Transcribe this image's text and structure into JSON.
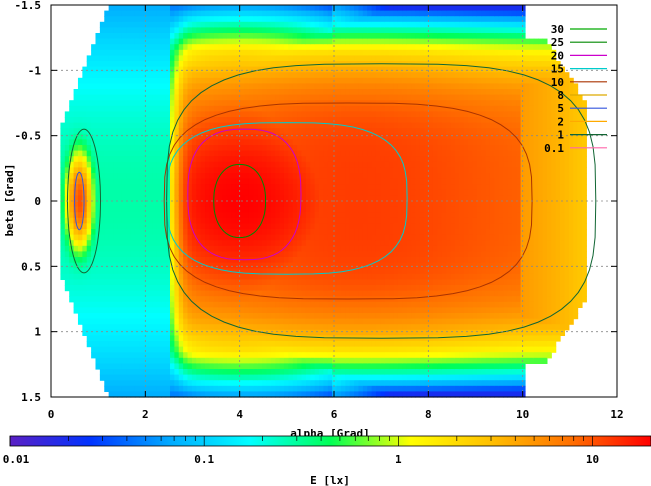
{
  "chart_data": {
    "type": "heatmap",
    "title": "",
    "xlabel": "alpha [Grad]",
    "ylabel": "beta [Grad]",
    "xlim": [
      0,
      12
    ],
    "ylim": [
      1.5,
      -1.5
    ],
    "x_ticks": [
      "0",
      "2",
      "4",
      "6",
      "8",
      "10",
      "12"
    ],
    "y_ticks": [
      "-1.5",
      "-1",
      "-0.5",
      "0",
      "0.5",
      "1",
      "1.5"
    ],
    "grid": true,
    "colorbar": {
      "label": "E [lx]",
      "scale": "log",
      "range": [
        0.01,
        20
      ],
      "ticks": [
        "0.01",
        "0.1",
        "1",
        "10"
      ],
      "colors": [
        "#5a1fc4",
        "#0033ff",
        "#00aaff",
        "#00ffff",
        "#00ff55",
        "#ffff00",
        "#ffc000",
        "#ff7000",
        "#ff0000"
      ]
    },
    "legend": {
      "placement": "top-right",
      "entries": [
        {
          "label": "30",
          "color": "#00aa00"
        },
        {
          "label": "25",
          "color": "#008800"
        },
        {
          "label": "20",
          "color": "#cc00cc"
        },
        {
          "label": "15",
          "color": "#00cccc"
        },
        {
          "label": "10",
          "color": "#aa3300"
        },
        {
          "label": "8",
          "color": "#ddaa00"
        },
        {
          "label": "5",
          "color": "#3355dd"
        },
        {
          "label": "2",
          "color": "#ffaa00"
        },
        {
          "label": "1",
          "color": "#116633"
        },
        {
          "label": "0.1",
          "color": "#ff66aa"
        }
      ]
    },
    "field": {
      "description": "illuminance distribution over alpha/beta",
      "peak_alpha": 4.0,
      "peak_beta": 0.0,
      "peak_value": 20,
      "hotspot_alpha": 0.6,
      "hotspot_value": 10
    }
  }
}
